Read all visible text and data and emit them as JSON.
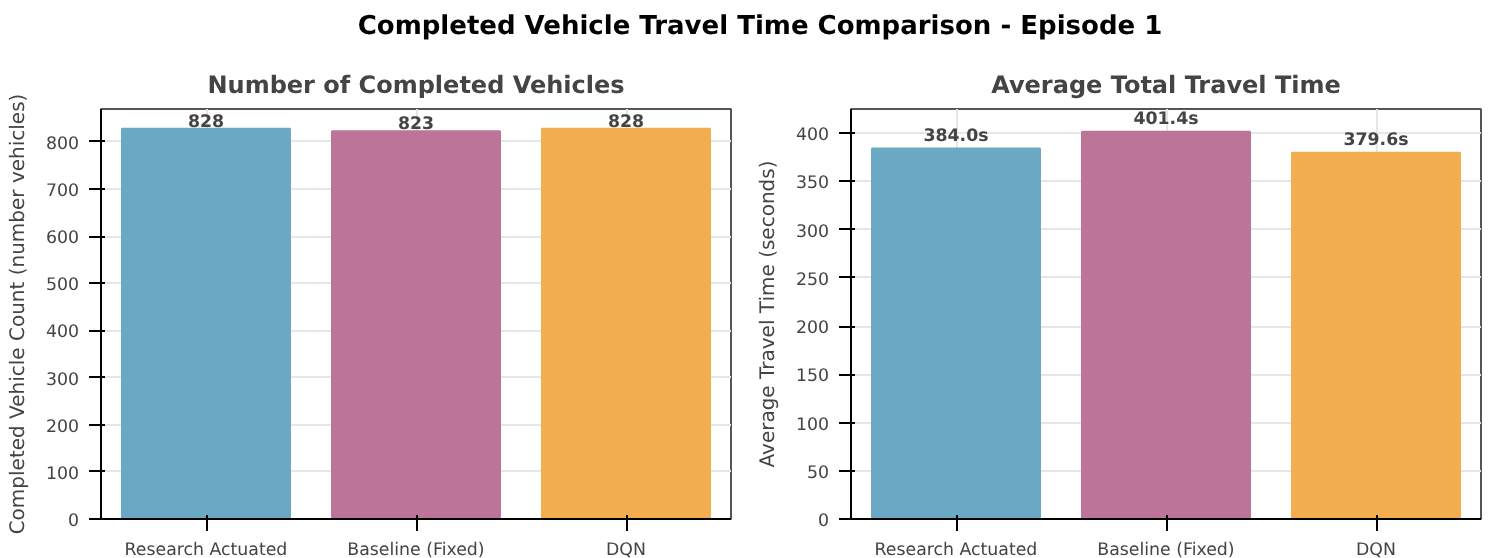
{
  "chart_data": [
    {
      "type": "bar",
      "title": "Number of Completed Vehicles",
      "ylabel": "Completed Vehicle Count (number vehicles)",
      "annotations": [
        "Completed Vehicle Travel Time Comparison - Episode 1"
      ],
      "categories": [
        "Research Actuated",
        "Baseline (Fixed)",
        "DQN"
      ],
      "values": [
        828,
        823,
        828
      ],
      "colors": [
        "#6aa8c4",
        "#bc7499",
        "#f2ad4e"
      ],
      "ylim": [
        0,
        870
      ],
      "yticks": [
        0,
        100,
        200,
        300,
        400,
        500,
        600,
        700,
        800
      ],
      "grid": true,
      "data_labels": true
    },
    {
      "type": "bar",
      "title": "Average Total Travel Time",
      "ylabel": "Average Travel Time (seconds)",
      "categories": [
        "Research Actuated",
        "Baseline (Fixed)",
        "DQN"
      ],
      "values": [
        384.0,
        401.4,
        379.6
      ],
      "value_labels": [
        "384.0s",
        "401.4s",
        "379.6s"
      ],
      "colors": [
        "#6aa8c4",
        "#bc7499",
        "#f2ad4e"
      ],
      "ylim": [
        0,
        425
      ],
      "yticks": [
        0,
        50,
        100,
        150,
        200,
        250,
        300,
        350,
        400
      ],
      "grid": true
    }
  ]
}
